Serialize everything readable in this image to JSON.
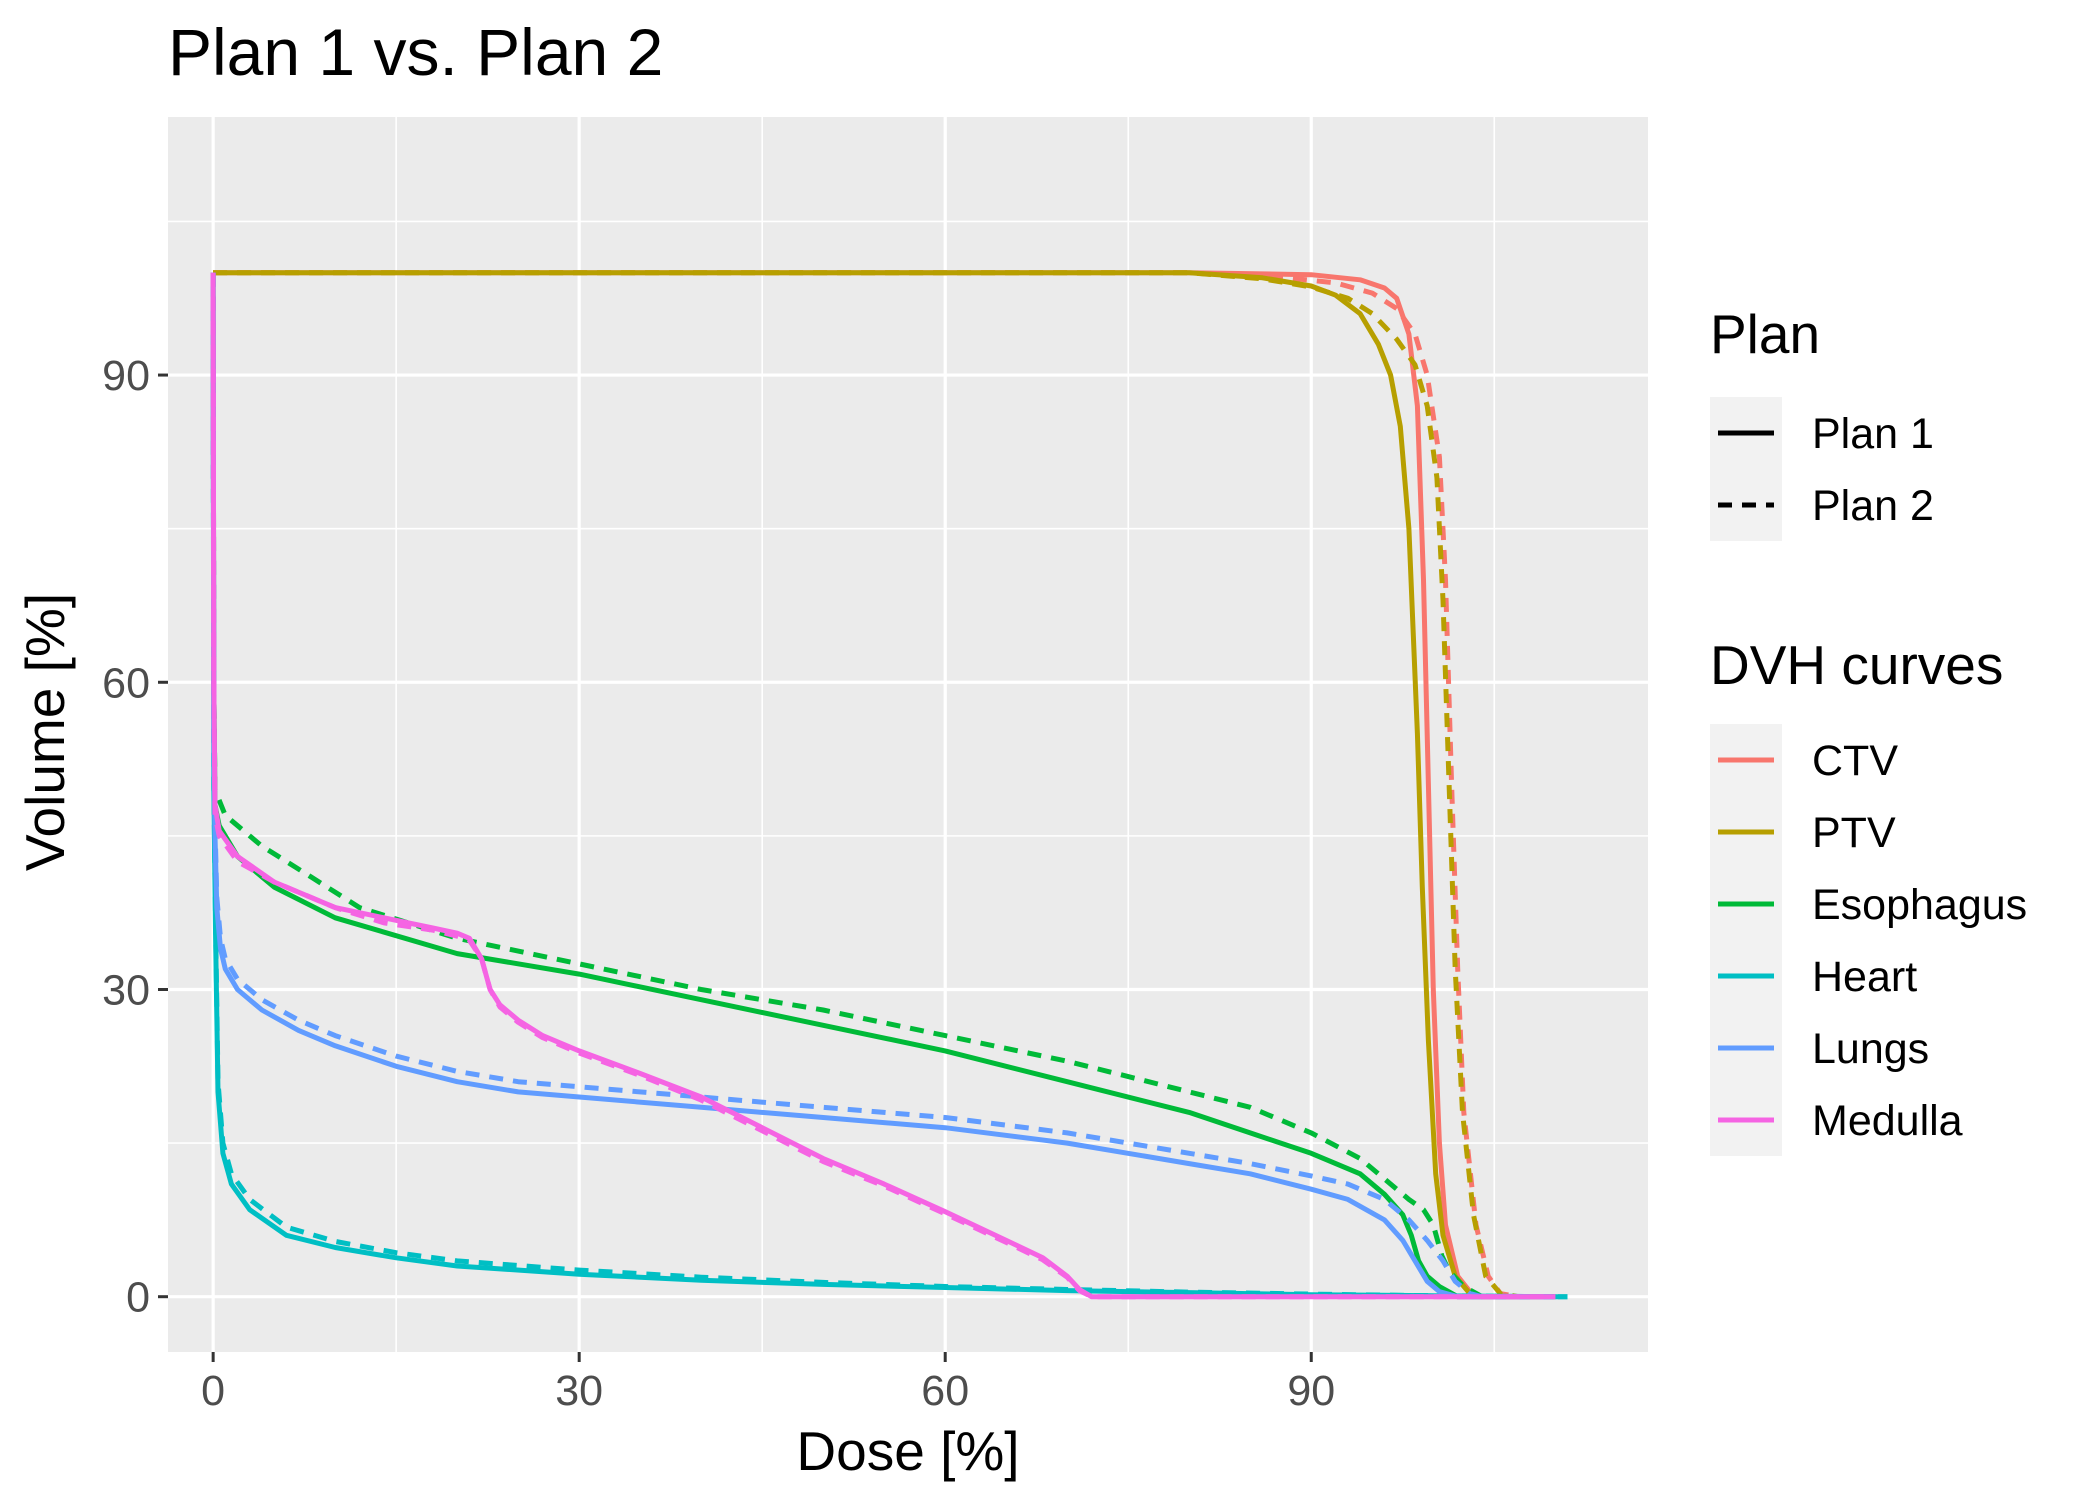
{
  "chart_data": {
    "type": "line",
    "title": "Plan 1 vs. Plan 2",
    "xlabel": "Dose [%]",
    "ylabel": "Volume [%]",
    "xlim": [
      -3.7,
      117.6
    ],
    "ylim": [
      -5.4,
      115.2
    ],
    "x_ticks": [
      0,
      30,
      60,
      90
    ],
    "y_ticks": [
      0,
      30,
      60,
      90
    ],
    "grid": true,
    "panel_background": "#ebebeb",
    "grid_color": "#ffffff",
    "legends": [
      {
        "title": "Plan",
        "position": "right",
        "entries": [
          {
            "label": "Plan 1",
            "linetype": "solid"
          },
          {
            "label": "Plan 2",
            "linetype": "dashed"
          }
        ]
      },
      {
        "title": "DVH curves",
        "position": "right",
        "entries": [
          {
            "label": "CTV",
            "color": "#F8766D"
          },
          {
            "label": "PTV",
            "color": "#B79F00"
          },
          {
            "label": "Esophagus",
            "color": "#00BA38"
          },
          {
            "label": "Heart",
            "color": "#00BFC4"
          },
          {
            "label": "Lungs",
            "color": "#619CFF"
          },
          {
            "label": "Medulla",
            "color": "#F564E3"
          }
        ]
      }
    ],
    "series": [
      {
        "structure": "CTV",
        "plan": "Plan 1",
        "color": "#F8766D",
        "linetype": "solid",
        "points": [
          [
            0,
            100
          ],
          [
            50,
            100
          ],
          [
            80,
            100
          ],
          [
            90,
            99.8
          ],
          [
            94,
            99.3
          ],
          [
            96,
            98.5
          ],
          [
            97,
            97.5
          ],
          [
            98,
            94
          ],
          [
            98.7,
            87
          ],
          [
            99.2,
            70
          ],
          [
            99.6,
            50
          ],
          [
            100,
            30
          ],
          [
            100.5,
            15
          ],
          [
            101,
            7
          ],
          [
            102,
            2
          ],
          [
            103,
            0.5
          ],
          [
            104,
            0
          ],
          [
            110,
            0
          ]
        ]
      },
      {
        "structure": "CTV",
        "plan": "Plan 2",
        "color": "#F8766D",
        "linetype": "dashed",
        "points": [
          [
            0,
            100
          ],
          [
            50,
            100
          ],
          [
            80,
            100
          ],
          [
            88,
            99.5
          ],
          [
            92,
            99
          ],
          [
            95,
            98
          ],
          [
            97,
            96.5
          ],
          [
            98.5,
            94
          ],
          [
            99.5,
            90
          ],
          [
            100.5,
            82
          ],
          [
            101,
            70
          ],
          [
            101.5,
            50
          ],
          [
            102,
            32
          ],
          [
            102.5,
            18
          ],
          [
            103.5,
            7
          ],
          [
            104.5,
            2
          ],
          [
            105.5,
            0.3
          ],
          [
            107,
            0
          ],
          [
            110,
            0
          ]
        ]
      },
      {
        "structure": "PTV",
        "plan": "Plan 1",
        "color": "#B79F00",
        "linetype": "solid",
        "points": [
          [
            0,
            100
          ],
          [
            50,
            100
          ],
          [
            80,
            100
          ],
          [
            86,
            99.5
          ],
          [
            90,
            98.7
          ],
          [
            92,
            97.8
          ],
          [
            94,
            96
          ],
          [
            95.5,
            93
          ],
          [
            96.5,
            90
          ],
          [
            97.3,
            85
          ],
          [
            98,
            75
          ],
          [
            98.7,
            55
          ],
          [
            99.1,
            40
          ],
          [
            99.6,
            25
          ],
          [
            100.2,
            12
          ],
          [
            100.8,
            6
          ],
          [
            101.8,
            2
          ],
          [
            103,
            0.3
          ],
          [
            104,
            0
          ],
          [
            110,
            0
          ]
        ]
      },
      {
        "structure": "PTV",
        "plan": "Plan 2",
        "color": "#B79F00",
        "linetype": "dashed",
        "points": [
          [
            0,
            100
          ],
          [
            50,
            100
          ],
          [
            80,
            100
          ],
          [
            86,
            99.4
          ],
          [
            90,
            98.6
          ],
          [
            93,
            97.5
          ],
          [
            95,
            96
          ],
          [
            97,
            93.5
          ],
          [
            98.5,
            91
          ],
          [
            99.5,
            87
          ],
          [
            100.3,
            80
          ],
          [
            100.8,
            68
          ],
          [
            101.3,
            50
          ],
          [
            101.8,
            32
          ],
          [
            102.4,
            18
          ],
          [
            103.3,
            8
          ],
          [
            104.3,
            2
          ],
          [
            105.5,
            0.3
          ],
          [
            107,
            0
          ],
          [
            110,
            0
          ]
        ]
      },
      {
        "structure": "Esophagus",
        "plan": "Plan 1",
        "color": "#00BA38",
        "linetype": "solid",
        "points": [
          [
            0,
            100
          ],
          [
            0.05,
            60
          ],
          [
            0.15,
            48
          ],
          [
            0.5,
            46
          ],
          [
            2,
            43
          ],
          [
            5,
            40
          ],
          [
            10,
            37
          ],
          [
            20,
            33.5
          ],
          [
            30,
            31.5
          ],
          [
            40,
            29
          ],
          [
            50,
            26.5
          ],
          [
            60,
            24
          ],
          [
            70,
            21
          ],
          [
            80,
            18
          ],
          [
            85,
            16
          ],
          [
            90,
            14
          ],
          [
            94,
            12
          ],
          [
            96,
            10
          ],
          [
            97.5,
            8
          ],
          [
            98.2,
            6
          ],
          [
            98.8,
            3.5
          ],
          [
            99.5,
            2
          ],
          [
            100.5,
            1
          ],
          [
            102,
            0
          ],
          [
            110,
            0
          ]
        ]
      },
      {
        "structure": "Esophagus",
        "plan": "Plan 2",
        "color": "#00BA38",
        "linetype": "dashed",
        "points": [
          [
            0,
            100
          ],
          [
            0.05,
            60
          ],
          [
            0.15,
            49.5
          ],
          [
            1,
            47
          ],
          [
            4,
            44
          ],
          [
            8,
            41
          ],
          [
            12,
            38
          ],
          [
            20,
            35
          ],
          [
            30,
            32.5
          ],
          [
            40,
            30
          ],
          [
            50,
            28
          ],
          [
            60,
            25.5
          ],
          [
            70,
            23
          ],
          [
            80,
            20
          ],
          [
            85,
            18.5
          ],
          [
            90,
            16
          ],
          [
            94,
            13.5
          ],
          [
            96,
            11.5
          ],
          [
            98,
            9.5
          ],
          [
            99.2,
            8.5
          ],
          [
            100,
            7
          ],
          [
            100.7,
            4
          ],
          [
            101.3,
            2.5
          ],
          [
            102.5,
            1
          ],
          [
            104,
            0
          ],
          [
            110,
            0
          ]
        ]
      },
      {
        "structure": "Heart",
        "plan": "Plan 1",
        "color": "#00BFC4",
        "linetype": "solid",
        "points": [
          [
            0,
            100
          ],
          [
            0.05,
            50
          ],
          [
            0.2,
            35
          ],
          [
            0.4,
            20
          ],
          [
            0.8,
            14
          ],
          [
            1.5,
            11
          ],
          [
            3,
            8.5
          ],
          [
            6,
            6
          ],
          [
            10,
            4.8
          ],
          [
            15,
            3.8
          ],
          [
            20,
            3
          ],
          [
            30,
            2.2
          ],
          [
            40,
            1.6
          ],
          [
            50,
            1.2
          ],
          [
            60,
            0.9
          ],
          [
            70,
            0.6
          ],
          [
            80,
            0.4
          ],
          [
            90,
            0.2
          ],
          [
            100,
            0.1
          ],
          [
            110,
            0
          ],
          [
            111,
            0
          ]
        ]
      },
      {
        "structure": "Heart",
        "plan": "Plan 2",
        "color": "#00BFC4",
        "linetype": "dashed",
        "points": [
          [
            0,
            100
          ],
          [
            0.05,
            50
          ],
          [
            0.2,
            36
          ],
          [
            0.4,
            21
          ],
          [
            0.8,
            15
          ],
          [
            1.5,
            12
          ],
          [
            3,
            9.5
          ],
          [
            6,
            6.8
          ],
          [
            10,
            5.4
          ],
          [
            15,
            4.3
          ],
          [
            20,
            3.5
          ],
          [
            30,
            2.6
          ],
          [
            40,
            1.9
          ],
          [
            50,
            1.4
          ],
          [
            60,
            1.0
          ],
          [
            70,
            0.7
          ],
          [
            80,
            0.45
          ],
          [
            90,
            0.25
          ],
          [
            100,
            0.1
          ],
          [
            110,
            0
          ],
          [
            111,
            0
          ]
        ]
      },
      {
        "structure": "Lungs",
        "plan": "Plan 1",
        "color": "#619CFF",
        "linetype": "solid",
        "points": [
          [
            0,
            100
          ],
          [
            0.05,
            55
          ],
          [
            0.15,
            45
          ],
          [
            0.3,
            38
          ],
          [
            0.6,
            34
          ],
          [
            1,
            32
          ],
          [
            2,
            30
          ],
          [
            4,
            28
          ],
          [
            7,
            26
          ],
          [
            10,
            24.5
          ],
          [
            15,
            22.5
          ],
          [
            20,
            21
          ],
          [
            25,
            20
          ],
          [
            30,
            19.5
          ],
          [
            40,
            18.5
          ],
          [
            50,
            17.5
          ],
          [
            60,
            16.5
          ],
          [
            70,
            15
          ],
          [
            80,
            13
          ],
          [
            85,
            12
          ],
          [
            90,
            10.5
          ],
          [
            93,
            9.5
          ],
          [
            96,
            7.5
          ],
          [
            97.5,
            5.5
          ],
          [
            98.5,
            3.5
          ],
          [
            99.5,
            1.5
          ],
          [
            100.5,
            0.5
          ],
          [
            102,
            0
          ],
          [
            110,
            0
          ]
        ]
      },
      {
        "structure": "Lungs",
        "plan": "Plan 2",
        "color": "#619CFF",
        "linetype": "dashed",
        "points": [
          [
            0,
            100
          ],
          [
            0.05,
            55
          ],
          [
            0.15,
            46
          ],
          [
            0.3,
            39
          ],
          [
            0.6,
            35
          ],
          [
            1,
            33
          ],
          [
            2,
            31
          ],
          [
            4,
            29
          ],
          [
            7,
            27
          ],
          [
            10,
            25.5
          ],
          [
            15,
            23.5
          ],
          [
            20,
            22
          ],
          [
            25,
            21
          ],
          [
            30,
            20.5
          ],
          [
            40,
            19.5
          ],
          [
            50,
            18.5
          ],
          [
            60,
            17.5
          ],
          [
            70,
            16
          ],
          [
            80,
            14
          ],
          [
            85,
            13
          ],
          [
            90,
            11.8
          ],
          [
            93,
            11
          ],
          [
            96,
            9.5
          ],
          [
            98,
            7.5
          ],
          [
            99.5,
            5.5
          ],
          [
            100.8,
            3.5
          ],
          [
            101.8,
            1.5
          ],
          [
            103,
            0.3
          ],
          [
            104,
            0
          ],
          [
            110,
            0
          ]
        ]
      },
      {
        "structure": "Medulla",
        "plan": "Plan 1",
        "color": "#F564E3",
        "linetype": "solid",
        "points": [
          [
            0,
            100
          ],
          [
            0.05,
            60
          ],
          [
            0.15,
            48
          ],
          [
            0.5,
            45.5
          ],
          [
            2,
            43
          ],
          [
            5,
            40.5
          ],
          [
            10,
            38
          ],
          [
            14,
            37
          ],
          [
            18,
            36
          ],
          [
            20,
            35.5
          ],
          [
            21,
            35
          ],
          [
            22,
            33
          ],
          [
            22.7,
            30
          ],
          [
            23.5,
            28.5
          ],
          [
            25,
            27
          ],
          [
            27,
            25.5
          ],
          [
            30,
            24
          ],
          [
            35,
            21.8
          ],
          [
            40,
            19.5
          ],
          [
            45,
            16.5
          ],
          [
            50,
            13.5
          ],
          [
            55,
            11
          ],
          [
            60,
            8.3
          ],
          [
            65,
            5.5
          ],
          [
            68,
            3.8
          ],
          [
            70,
            2
          ],
          [
            71,
            0.7
          ],
          [
            72,
            0
          ],
          [
            80,
            0
          ],
          [
            110,
            0
          ]
        ]
      },
      {
        "structure": "Medulla",
        "plan": "Plan 2",
        "color": "#F564E3",
        "linetype": "dashed",
        "points": [
          [
            0,
            100
          ],
          [
            0.05,
            60
          ],
          [
            0.15,
            47
          ],
          [
            0.5,
            45
          ],
          [
            2,
            42.5
          ],
          [
            5,
            40.5
          ],
          [
            10,
            38
          ],
          [
            14,
            36.5
          ],
          [
            18,
            35.8
          ],
          [
            20,
            35.2
          ],
          [
            21,
            34.8
          ],
          [
            22,
            33
          ],
          [
            22.7,
            30
          ],
          [
            23.5,
            28.3
          ],
          [
            25,
            26.8
          ],
          [
            27,
            25.3
          ],
          [
            30,
            23.8
          ],
          [
            35,
            21.6
          ],
          [
            40,
            19.2
          ],
          [
            45,
            16.2
          ],
          [
            50,
            13.2
          ],
          [
            55,
            10.8
          ],
          [
            60,
            8.1
          ],
          [
            65,
            5.3
          ],
          [
            68,
            3.6
          ],
          [
            70,
            1.9
          ],
          [
            71,
            0.6
          ],
          [
            72,
            0
          ],
          [
            80,
            0
          ],
          [
            110,
            0
          ]
        ]
      }
    ]
  }
}
